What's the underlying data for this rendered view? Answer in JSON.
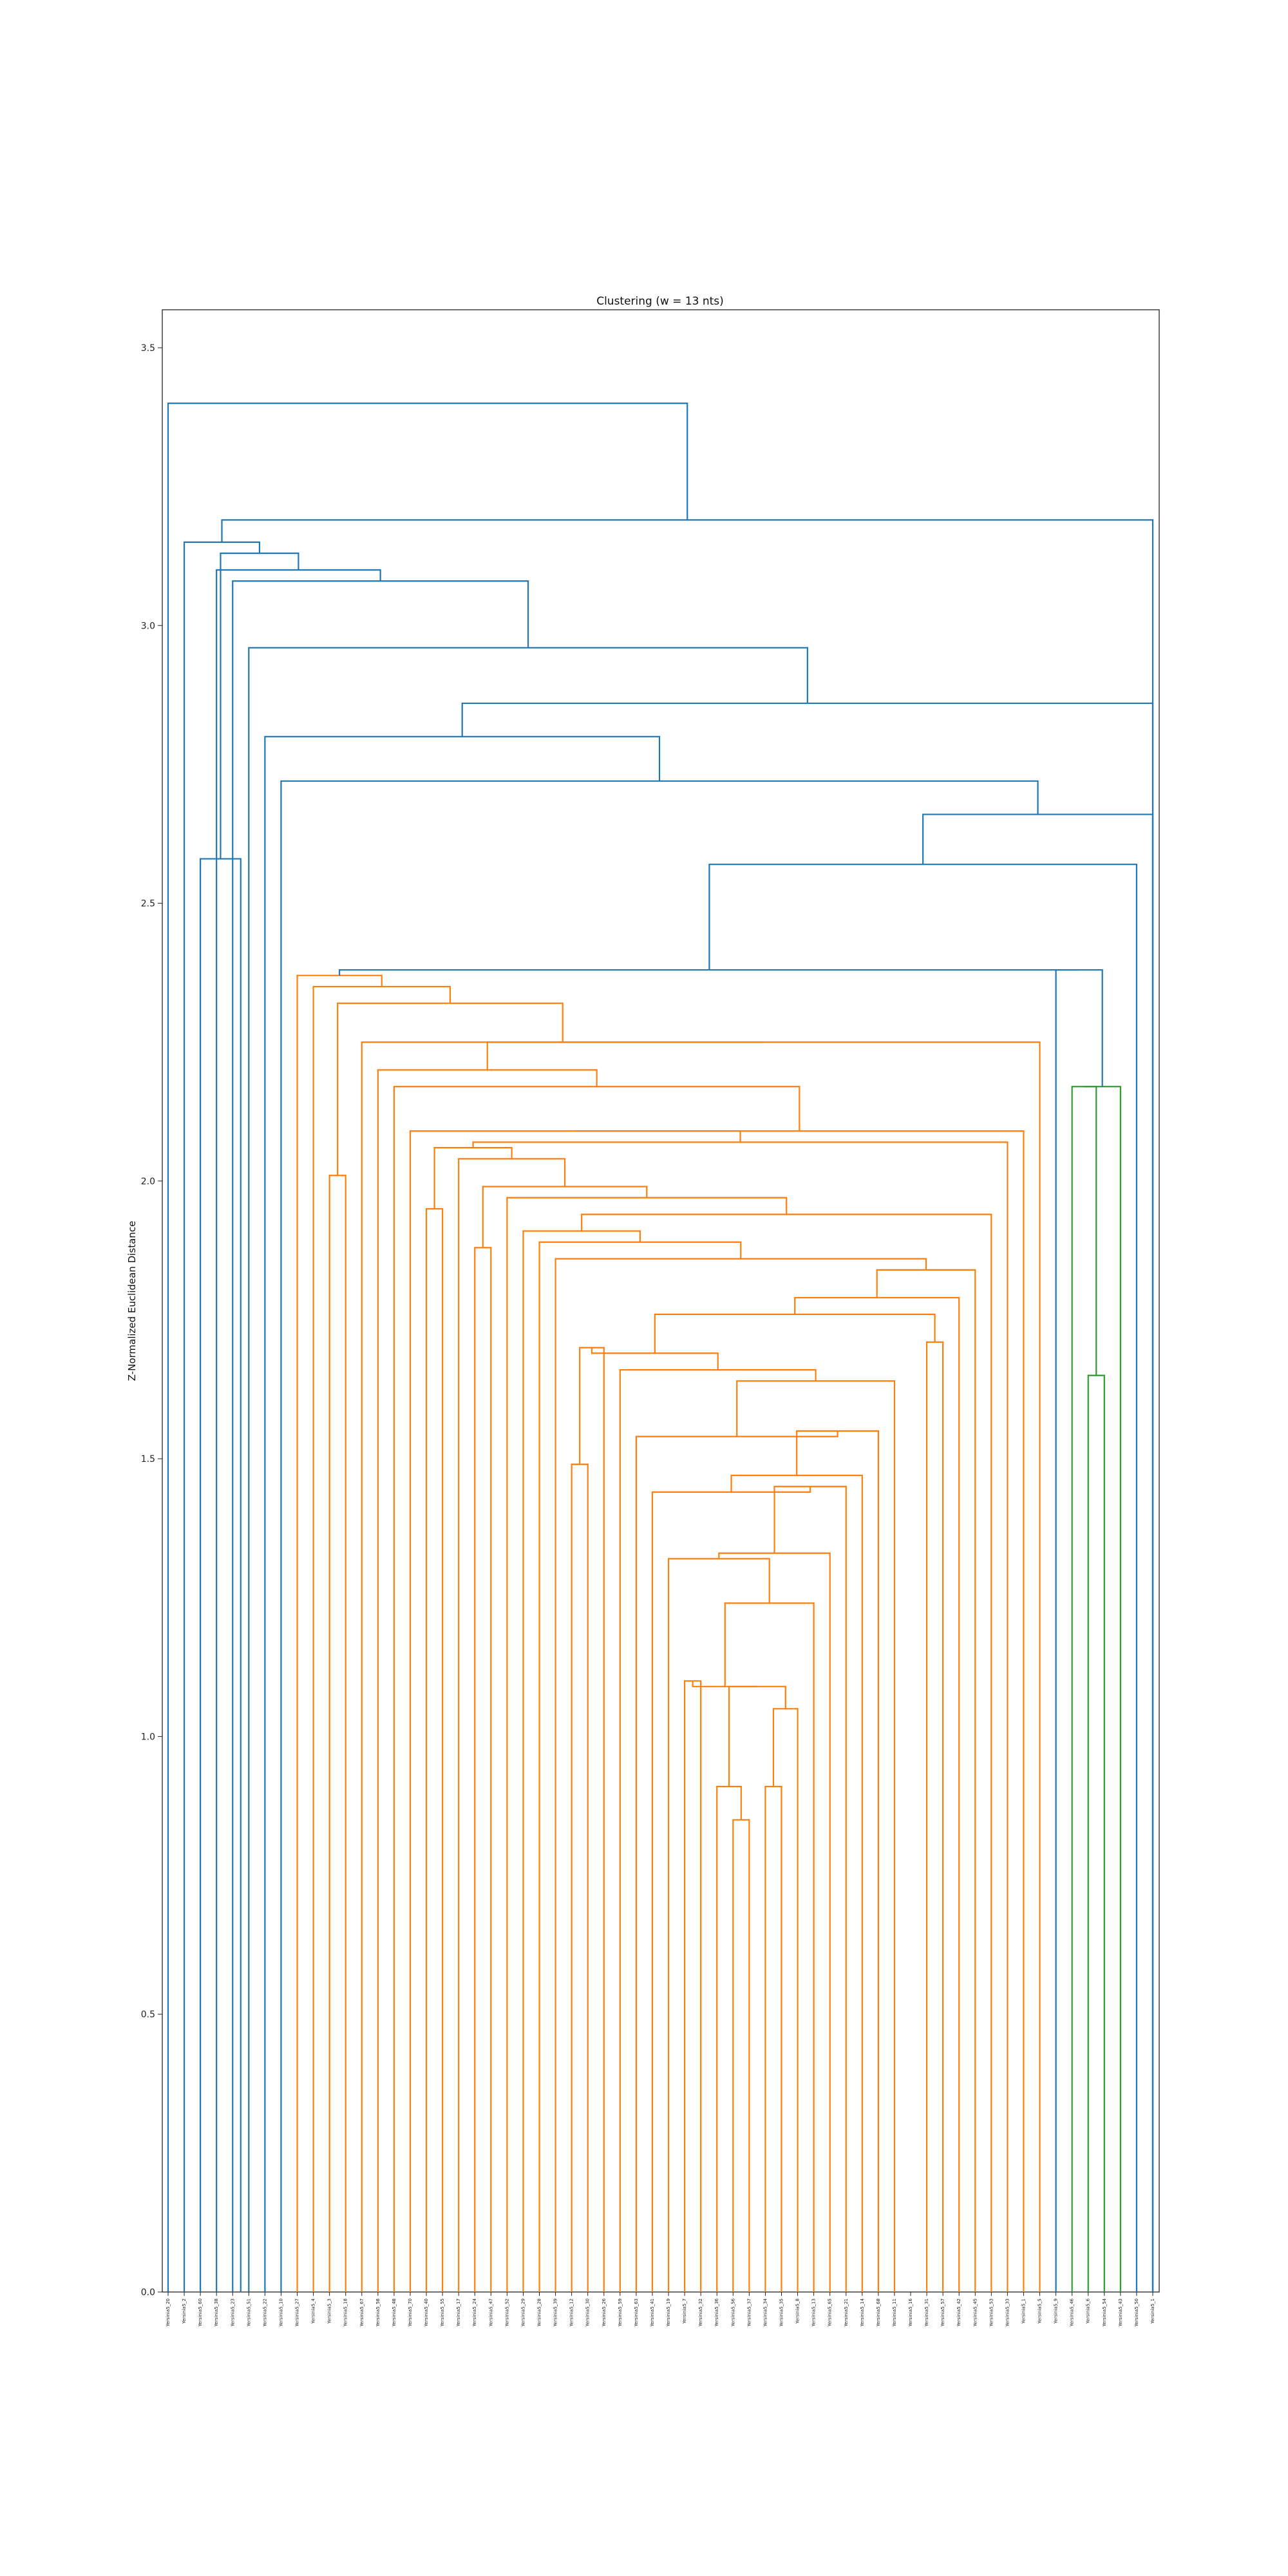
{
  "chart_data": {
    "type": "dendrogram",
    "title": "Clustering (w = 13 nts)",
    "xlabel": "",
    "ylabel": "Z-Normalized Euclidean Distance",
    "ylim": [
      0,
      3.57
    ],
    "yticks": [
      0.0,
      0.5,
      1.0,
      1.5,
      2.0,
      2.5,
      3.0,
      3.5
    ],
    "ytick_labels": [
      "0.0",
      "0.5",
      "1.0",
      "1.5",
      "2.0",
      "2.5",
      "3.0",
      "3.5"
    ],
    "grid": false,
    "colors": {
      "above_threshold": "#1f77b4",
      "cluster_1": "#ff7f0e",
      "cluster_2": "#2ca02c"
    },
    "leaves": [
      "Yersinia5_20",
      "Yersinia5_2",
      "Yersinia5_60",
      "Yersinia5_38",
      "Yersinia5_23",
      "Yersinia5_51",
      "Yersinia5_22",
      "Yersinia5_10",
      "Yersinia5_27",
      "Yersinia5_4",
      "Yersinia5_3",
      "Yersinia5_18",
      "Yersinia5_67",
      "Yersinia5_58",
      "Yersinia5_48",
      "Yersinia5_70",
      "Yersinia5_40",
      "Yersinia5_55",
      "Yersinia5_17",
      "Yersinia5_24",
      "Yersinia5_47",
      "Yersinia5_52",
      "Yersinia5_29",
      "Yersinia5_28",
      "Yersinia5_39",
      "Yersinia5_12",
      "Yersinia5_30",
      "Yersinia5_26",
      "Yersinia5_59",
      "Yersinia5_63",
      "Yersinia5_41",
      "Yersinia5_19",
      "Yersinia5_7",
      "Yersinia5_32",
      "Yersinia5_36",
      "Yersinia5_56",
      "Yersinia5_37",
      "Yersinia5_34",
      "Yersinia5_35",
      "Yersinia5_8",
      "Yersinia5_13",
      "Yersinia5_65",
      "Yersinia5_21",
      "Yersinia5_14",
      "Yersinia5_68",
      "Yersinia5_11",
      "Yersinia5_16",
      "Yersinia5_31",
      "Yersinia5_57",
      "Yersinia5_42",
      "Yersinia5_45",
      "Yersinia5_53",
      "Yersinia5_33",
      "Yersinia5_1",
      "Yersinia5_5",
      "Yersinia5_9",
      "Yersinia5_46",
      "Yersinia5_6",
      "Yersinia5_54",
      "Yersinia5_43",
      "Yersinia5_50",
      "Yersinia5_1"
    ],
    "merges": [
      {
        "a": "L35",
        "b": "L36",
        "h": 0.85,
        "c": "o"
      },
      {
        "a": "L34",
        "b": "n0",
        "h": 0.91,
        "c": "o"
      },
      {
        "a": "L37",
        "b": "L38",
        "h": 0.91,
        "c": "o"
      },
      {
        "a": "L32",
        "b": "L33",
        "h": 1.1,
        "c": "o"
      },
      {
        "a": "n2",
        "b": "L39",
        "h": 1.05,
        "c": "o"
      },
      {
        "a": "n1",
        "b": "n4",
        "h": 1.09,
        "c": "o"
      },
      {
        "a": "n3",
        "b": "n5",
        "h": 1.09,
        "c": "o"
      },
      {
        "a": "n6",
        "b": "L40",
        "h": 1.24,
        "c": "o"
      },
      {
        "a": "L31",
        "b": "n7",
        "h": 1.32,
        "c": "o"
      },
      {
        "a": "n8",
        "b": "L41",
        "h": 1.33,
        "c": "o"
      },
      {
        "a": "n9",
        "b": "L42",
        "h": 1.45,
        "c": "o"
      },
      {
        "a": "L30",
        "b": "n10",
        "h": 1.44,
        "c": "o"
      },
      {
        "a": "n11",
        "b": "L43",
        "h": 1.47,
        "c": "o"
      },
      {
        "a": "n12",
        "b": "L44",
        "h": 1.55,
        "c": "o"
      },
      {
        "a": "L29",
        "b": "n13",
        "h": 1.54,
        "c": "o"
      },
      {
        "a": "n14",
        "b": "L45",
        "h": 1.64,
        "c": "o"
      },
      {
        "a": "L28",
        "b": "n15",
        "h": 1.66,
        "c": "o"
      },
      {
        "a": "L25",
        "b": "L26",
        "h": 1.49,
        "c": "o"
      },
      {
        "a": "n17",
        "b": "L27",
        "h": 1.7,
        "c": "o"
      },
      {
        "a": "n18",
        "b": "n16",
        "h": 1.69,
        "c": "o"
      },
      {
        "a": "L47",
        "b": "L48",
        "h": 1.71,
        "c": "o"
      },
      {
        "a": "n19",
        "b": "n20",
        "h": 1.76,
        "c": "o"
      },
      {
        "a": "n21",
        "b": "L49",
        "h": 1.79,
        "c": "o"
      },
      {
        "a": "n22",
        "b": "L50",
        "h": 1.84,
        "c": "o"
      },
      {
        "a": "L24",
        "b": "n23",
        "h": 1.86,
        "c": "o"
      },
      {
        "a": "L23",
        "b": "n24",
        "h": 1.89,
        "c": "o"
      },
      {
        "a": "L22",
        "b": "n25",
        "h": 1.91,
        "c": "o"
      },
      {
        "a": "n26",
        "b": "L51",
        "h": 1.94,
        "c": "o"
      },
      {
        "a": "L21",
        "b": "n27",
        "h": 1.97,
        "c": "o"
      },
      {
        "a": "L19",
        "b": "L20",
        "h": 1.88,
        "c": "o"
      },
      {
        "a": "n29",
        "b": "n28",
        "h": 1.99,
        "c": "o"
      },
      {
        "a": "L18",
        "b": "n30",
        "h": 2.04,
        "c": "o"
      },
      {
        "a": "L16",
        "b": "L17",
        "h": 1.95,
        "c": "o"
      },
      {
        "a": "n32",
        "b": "n31",
        "h": 2.06,
        "c": "o"
      },
      {
        "a": "n33",
        "b": "L52",
        "h": 2.07,
        "c": "o"
      },
      {
        "a": "L15",
        "b": "n34",
        "h": 2.09,
        "c": "o"
      },
      {
        "a": "n35",
        "b": "L53",
        "h": 2.09,
        "c": "o"
      },
      {
        "a": "L14",
        "b": "n36",
        "h": 2.17,
        "c": "o"
      },
      {
        "a": "L13",
        "b": "n37",
        "h": 2.2,
        "c": "o"
      },
      {
        "a": "n38",
        "b": "L54",
        "h": 2.25,
        "c": "o"
      },
      {
        "a": "L12",
        "b": "n39",
        "h": 2.25,
        "c": "o"
      },
      {
        "a": "L10",
        "b": "L11",
        "h": 2.01,
        "c": "o"
      },
      {
        "a": "n41",
        "b": "n40",
        "h": 2.32,
        "c": "o"
      },
      {
        "a": "L9",
        "b": "n42",
        "h": 2.35,
        "c": "o"
      },
      {
        "a": "L8",
        "b": "n43",
        "h": 2.37,
        "c": "o"
      },
      {
        "a": "L57",
        "b": "L58",
        "h": 1.65,
        "c": "g"
      },
      {
        "a": "L56",
        "b": "n45",
        "h": 2.17,
        "c": "g"
      },
      {
        "a": "n46",
        "b": "L59",
        "h": 2.17,
        "c": "g"
      },
      {
        "a": "L55",
        "b": "n47",
        "h": 2.38,
        "c": "b"
      },
      {
        "a": "n44",
        "b": "n48",
        "h": 2.38,
        "c": "b"
      },
      {
        "a": "n49",
        "b": "L60",
        "h": 2.57,
        "c": "b"
      },
      {
        "a": "n50",
        "b": "L61",
        "h": 2.66,
        "c": "b"
      },
      {
        "a": "L7",
        "b": "n51",
        "h": 2.72,
        "c": "b"
      },
      {
        "a": "L6",
        "b": "n52",
        "h": 2.8,
        "c": "b"
      },
      {
        "a": "n53",
        "b": "L62",
        "h": 2.86,
        "c": "b"
      },
      {
        "a": "L5",
        "b": "n54",
        "h": 2.96,
        "c": "b"
      },
      {
        "a": "L4",
        "b": "n55",
        "h": 3.08,
        "c": "b"
      },
      {
        "a": "L3",
        "b": "n56",
        "h": 3.1,
        "c": "b"
      },
      {
        "a": "L2",
        "b": "L4x",
        "h": 2.58,
        "c": "b"
      },
      {
        "a": "n58",
        "b": "n57",
        "h": 3.13,
        "c": "b"
      },
      {
        "a": "L1",
        "b": "n59",
        "h": 3.15,
        "c": "b"
      },
      {
        "a": "n60",
        "b": "L63",
        "h": 3.19,
        "c": "b"
      },
      {
        "a": "L0",
        "b": "n61",
        "h": 3.4,
        "c": "b"
      }
    ]
  }
}
